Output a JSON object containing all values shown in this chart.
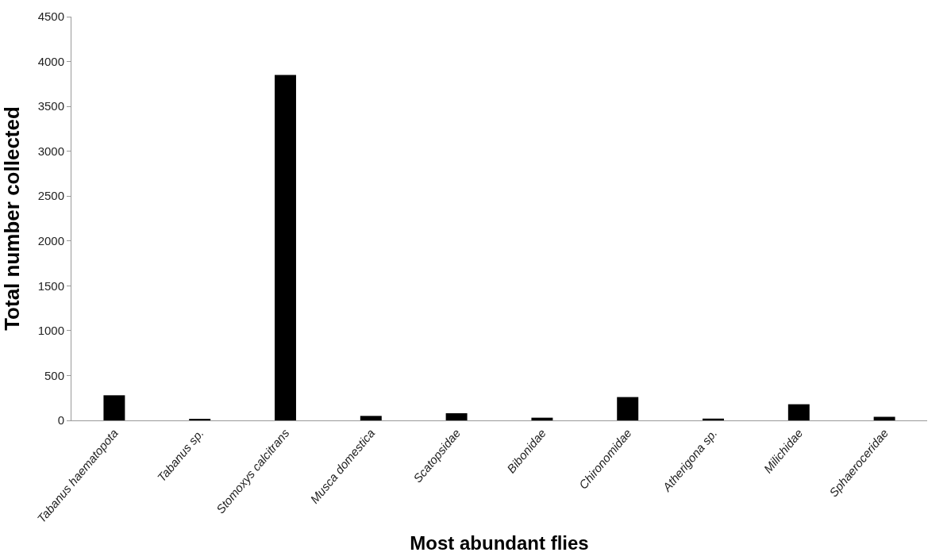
{
  "chart_data": {
    "type": "bar",
    "xlabel": "Most abundant flies",
    "ylabel": "Total number collected",
    "categories": [
      "Tabanus haematopota",
      "Tabanus sp.",
      "Stomoxys calcitrans",
      "Musca domestica",
      "Scatopsidae",
      "Bibonidae",
      "Chironomidae",
      "Atherigona sp.",
      "Milichidae",
      "Sphaeroceridae"
    ],
    "values": [
      280,
      10,
      3850,
      50,
      80,
      30,
      260,
      20,
      180,
      40
    ],
    "color": "#000000",
    "ylim": [
      0,
      4500
    ],
    "yticks": [
      0,
      500,
      1000,
      1500,
      2000,
      2500,
      3000,
      3500,
      4000,
      4500
    ]
  }
}
